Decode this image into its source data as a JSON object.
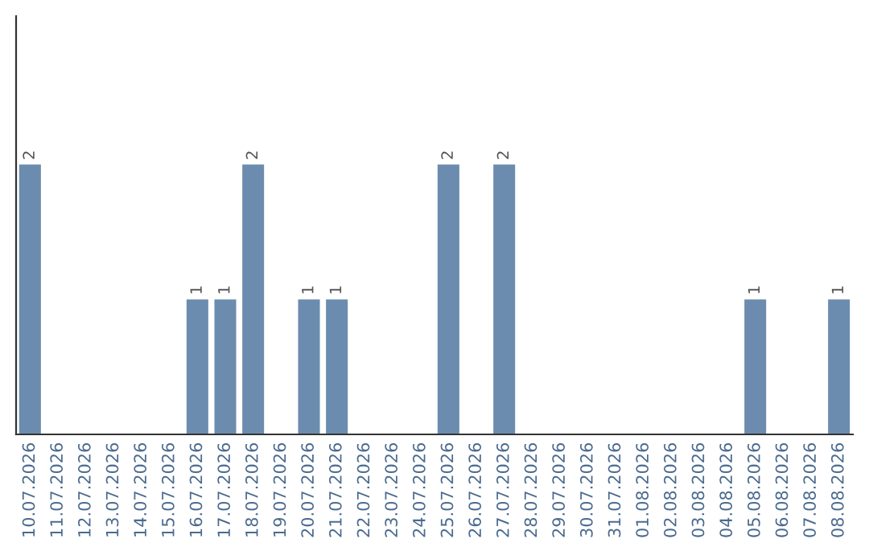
{
  "chart_data": {
    "type": "bar",
    "categories": [
      "10.07.2026",
      "11.07.2026",
      "12.07.2026",
      "13.07.2026",
      "14.07.2026",
      "15.07.2026",
      "16.07.2026",
      "17.07.2026",
      "18.07.2026",
      "19.07.2026",
      "20.07.2026",
      "21.07.2026",
      "22.07.2026",
      "23.07.2026",
      "24.07.2026",
      "25.07.2026",
      "26.07.2026",
      "27.07.2026",
      "28.07.2026",
      "29.07.2026",
      "30.07.2026",
      "31.07.2026",
      "01.08.2026",
      "02.08.2026",
      "03.08.2026",
      "04.08.2026",
      "05.08.2026",
      "06.08.2026",
      "07.08.2026",
      "08.08.2026"
    ],
    "values": [
      2,
      0,
      0,
      0,
      0,
      0,
      1,
      1,
      2,
      0,
      1,
      1,
      0,
      0,
      0,
      2,
      0,
      2,
      0,
      0,
      0,
      0,
      0,
      0,
      0,
      0,
      1,
      0,
      0,
      1
    ],
    "value_labels": [
      "2",
      null,
      null,
      null,
      null,
      null,
      "1",
      "1",
      "2",
      null,
      "1",
      "1",
      null,
      null,
      null,
      "2",
      null,
      "2",
      null,
      null,
      null,
      null,
      null,
      null,
      null,
      null,
      "1",
      null,
      null,
      "1"
    ],
    "color": "#6b8cae",
    "ylim": [
      0,
      3.1
    ],
    "tick_labels": "x",
    "grid": false,
    "legend": false
  }
}
